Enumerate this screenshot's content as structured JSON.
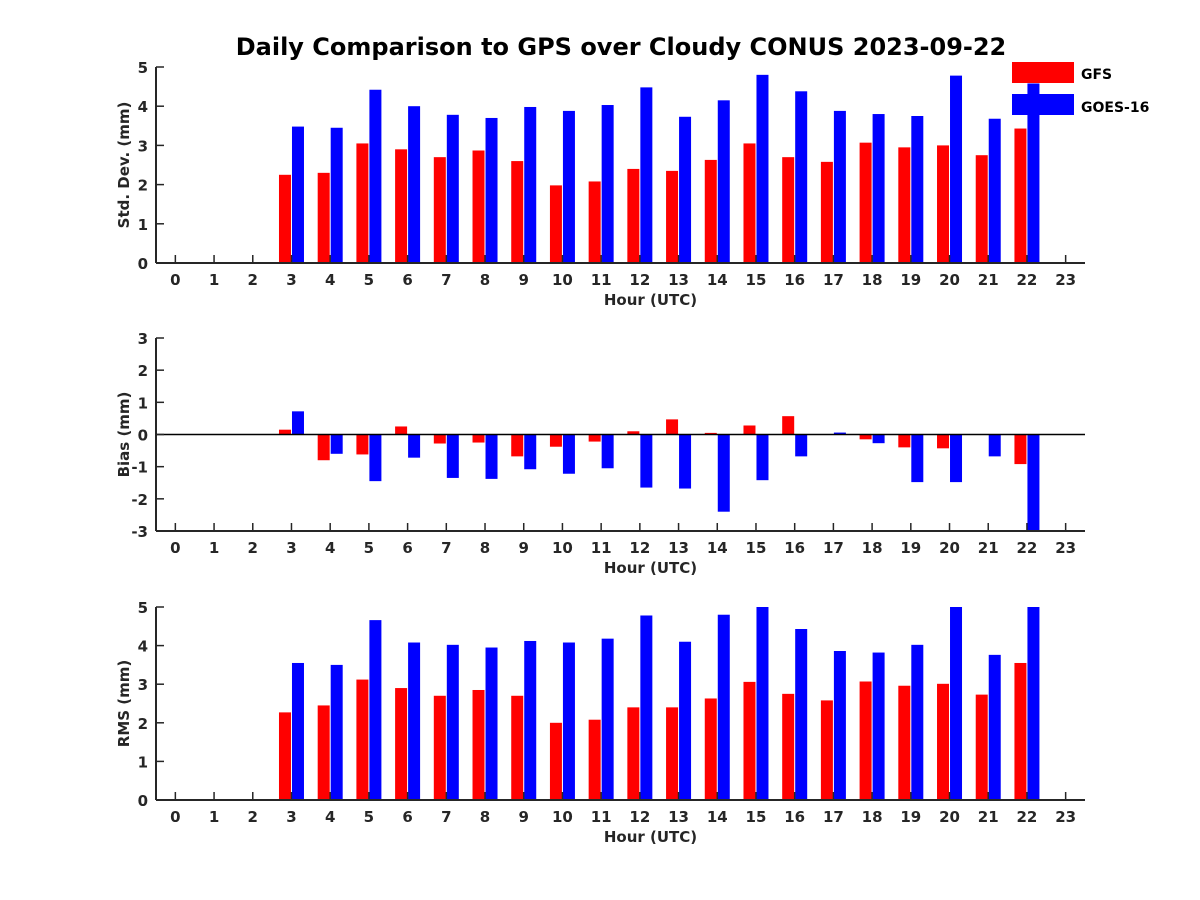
{
  "colors": {
    "gfs": "#ff0000",
    "goes": "#0000ff",
    "axis": "#262626"
  },
  "chart_data": {
    "type": "bar",
    "title": "Daily Comparison to GPS over Cloudy CONUS 2023-09-22",
    "legend": {
      "placement": "top-right",
      "entries": [
        "GFS",
        "GOES-16"
      ]
    },
    "categories": [
      0,
      1,
      2,
      3,
      4,
      5,
      6,
      7,
      8,
      9,
      10,
      11,
      12,
      13,
      14,
      15,
      16,
      17,
      18,
      19,
      20,
      21,
      22,
      23
    ],
    "panels": [
      {
        "ylabel": "Std. Dev. (mm)",
        "xlabel": "Hour (UTC)",
        "ylim": [
          0,
          5
        ],
        "yticks": [
          0,
          1,
          2,
          3,
          4,
          5
        ],
        "series": [
          {
            "name": "GFS",
            "values": [
              null,
              null,
              null,
              2.25,
              2.3,
              3.05,
              2.9,
              2.7,
              2.87,
              2.6,
              1.98,
              2.08,
              2.4,
              2.35,
              2.63,
              3.05,
              2.7,
              2.58,
              3.07,
              2.95,
              3.0,
              2.75,
              3.43,
              null
            ]
          },
          {
            "name": "GOES-16",
            "values": [
              null,
              null,
              null,
              3.48,
              3.45,
              4.42,
              4.0,
              3.78,
              3.7,
              3.98,
              3.88,
              4.03,
              4.48,
              3.73,
              4.15,
              4.8,
              4.38,
              3.88,
              3.8,
              3.75,
              4.78,
              3.68,
              4.58,
              null
            ]
          }
        ]
      },
      {
        "ylabel": "Bias (mm)",
        "xlabel": "Hour (UTC)",
        "ylim": [
          -3,
          3
        ],
        "yticks": [
          -3,
          -2,
          -1,
          0,
          1,
          2,
          3
        ],
        "series": [
          {
            "name": "GFS",
            "values": [
              null,
              null,
              null,
              0.15,
              -0.8,
              -0.62,
              0.25,
              -0.28,
              -0.25,
              -0.68,
              -0.38,
              -0.22,
              0.1,
              0.47,
              0.05,
              0.28,
              0.57,
              0.0,
              -0.15,
              -0.4,
              -0.43,
              0.0,
              -0.92,
              null
            ]
          },
          {
            "name": "GOES-16",
            "values": [
              null,
              null,
              null,
              0.72,
              -0.6,
              -1.45,
              -0.72,
              -1.35,
              -1.38,
              -1.08,
              -1.22,
              -1.05,
              -1.65,
              -1.68,
              -2.4,
              -1.42,
              -0.68,
              0.06,
              -0.27,
              -1.48,
              -1.48,
              -0.68,
              -3.0,
              null
            ]
          }
        ]
      },
      {
        "ylabel": "RMS (mm)",
        "xlabel": "Hour (UTC)",
        "ylim": [
          0,
          5
        ],
        "yticks": [
          0,
          1,
          2,
          3,
          4,
          5
        ],
        "series": [
          {
            "name": "GFS",
            "values": [
              null,
              null,
              null,
              2.27,
              2.45,
              3.12,
              2.9,
              2.7,
              2.85,
              2.7,
              2.0,
              2.08,
              2.4,
              2.4,
              2.63,
              3.06,
              2.75,
              2.58,
              3.07,
              2.96,
              3.01,
              2.73,
              3.55,
              null
            ]
          },
          {
            "name": "GOES-16",
            "values": [
              null,
              null,
              null,
              3.55,
              3.5,
              4.66,
              4.08,
              4.02,
              3.95,
              4.12,
              4.08,
              4.18,
              4.78,
              4.1,
              4.8,
              5.0,
              4.43,
              3.86,
              3.82,
              4.02,
              5.0,
              3.76,
              5.0,
              null
            ]
          }
        ]
      }
    ]
  }
}
